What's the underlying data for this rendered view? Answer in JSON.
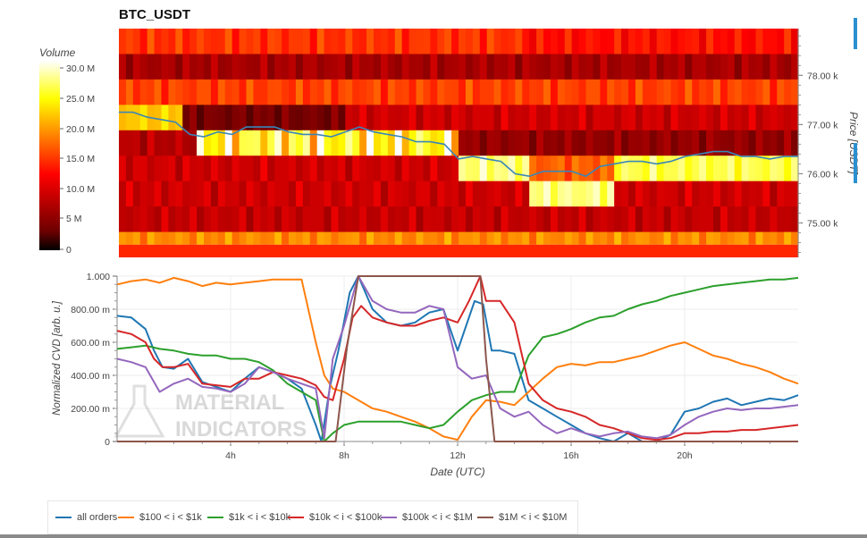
{
  "title": "BTC_USDT",
  "heatmap": {
    "colorbar_title": "Volume",
    "colorbar_ticks": [
      "30.0 M",
      "25.0 M",
      "20.0 M",
      "15.0 M",
      "10.0 M",
      "5 M",
      "0"
    ],
    "price_axis_label": "Price [USDT]",
    "price_ticks": [
      "78.00 k",
      "77.00 k",
      "76.00 k",
      "75.00 k"
    ],
    "price_tick_values": [
      78000,
      77000,
      76000,
      75000
    ],
    "price_range": [
      74300,
      78950
    ]
  },
  "chart_data": {
    "type": "line",
    "x_range_hours": [
      0,
      24
    ],
    "xticks": [
      "4h",
      "8h",
      "12h",
      "16h",
      "20h"
    ],
    "xtick_values": [
      4,
      8,
      12,
      16,
      20
    ],
    "xlabel": "Date (UTC)",
    "ylabel": "Normalized CVD [arb. u.]",
    "ylim": [
      0,
      1
    ],
    "yticks": [
      "0",
      "200.00 m",
      "400.00 m",
      "600.00 m",
      "800.00 m",
      "1.000"
    ],
    "ytick_values": [
      0,
      0.2,
      0.4,
      0.6,
      0.8,
      1.0
    ],
    "grid": true,
    "legend_position": "bottom",
    "price_series": {
      "x": [
        0,
        0.5,
        1,
        1.5,
        2,
        2.5,
        3,
        3.5,
        4,
        4.5,
        5,
        5.5,
        6,
        6.5,
        7,
        7.5,
        8,
        8.5,
        9,
        9.5,
        10,
        10.5,
        11,
        11.5,
        12,
        12.5,
        13,
        13.5,
        14,
        14.5,
        15,
        15.5,
        16,
        16.5,
        17,
        17.5,
        18,
        18.5,
        19,
        19.5,
        20,
        20.5,
        21,
        21.5,
        22,
        22.5,
        23,
        23.5,
        24
      ],
      "y": [
        77250,
        77250,
        77150,
        77100,
        77050,
        76800,
        76750,
        76850,
        76800,
        76950,
        76950,
        76950,
        76850,
        76800,
        76800,
        76750,
        76850,
        76950,
        76850,
        76800,
        76750,
        76650,
        76650,
        76600,
        76300,
        76350,
        76300,
        76250,
        76000,
        75950,
        76050,
        76050,
        76050,
        75950,
        76150,
        76200,
        76250,
        76250,
        76200,
        76250,
        76350,
        76400,
        76450,
        76450,
        76350,
        76350,
        76300,
        76350,
        76350
      ]
    },
    "series": [
      {
        "name": "all orders",
        "color": "#1f77b4",
        "x": [
          0,
          0.5,
          1,
          1.3,
          1.6,
          2,
          2.5,
          3,
          3.5,
          4,
          4.5,
          5,
          5.5,
          6,
          6.5,
          7,
          7.2,
          7.5,
          7.8,
          8.2,
          8.5,
          9,
          9.5,
          10,
          10.5,
          11,
          11.5,
          12,
          12.3,
          12.6,
          12.9,
          13.2,
          13.5,
          14,
          14.5,
          15,
          15.5,
          16,
          16.5,
          17,
          17.5,
          18,
          18.5,
          19,
          19.5,
          20,
          20.5,
          21,
          21.5,
          22,
          22.5,
          23,
          23.5,
          24
        ],
        "values": [
          0.76,
          0.75,
          0.68,
          0.55,
          0.45,
          0.44,
          0.5,
          0.36,
          0.33,
          0.3,
          0.38,
          0.45,
          0.42,
          0.38,
          0.32,
          0.1,
          0.0,
          0.33,
          0.55,
          0.9,
          1.0,
          0.8,
          0.72,
          0.7,
          0.72,
          0.78,
          0.8,
          0.55,
          0.7,
          0.85,
          0.83,
          0.55,
          0.55,
          0.53,
          0.25,
          0.2,
          0.15,
          0.1,
          0.05,
          0.02,
          0.0,
          0.05,
          0.0,
          0.0,
          0.04,
          0.18,
          0.2,
          0.24,
          0.26,
          0.22,
          0.24,
          0.26,
          0.25,
          0.28
        ]
      },
      {
        "name": "$100 < i < $1k",
        "color": "#ff7f0e",
        "x": [
          0,
          0.5,
          1,
          1.5,
          2,
          2.5,
          3,
          3.5,
          4,
          4.5,
          5,
          5.5,
          6,
          6.5,
          7,
          7.3,
          7.6,
          8,
          8.5,
          9,
          9.5,
          10,
          10.5,
          11,
          11.5,
          12,
          12.5,
          13,
          13.5,
          14,
          14.5,
          15,
          15.5,
          16,
          16.5,
          17,
          17.5,
          18,
          18.5,
          19,
          19.5,
          20,
          20.5,
          21,
          21.5,
          22,
          22.5,
          23,
          23.5,
          24
        ],
        "values": [
          0.95,
          0.97,
          0.98,
          0.96,
          0.99,
          0.97,
          0.94,
          0.96,
          0.95,
          0.96,
          0.97,
          0.98,
          0.98,
          0.98,
          0.6,
          0.4,
          0.32,
          0.3,
          0.25,
          0.2,
          0.18,
          0.15,
          0.12,
          0.08,
          0.03,
          0.01,
          0.15,
          0.25,
          0.24,
          0.22,
          0.3,
          0.38,
          0.45,
          0.47,
          0.46,
          0.48,
          0.48,
          0.5,
          0.52,
          0.55,
          0.58,
          0.6,
          0.56,
          0.52,
          0.5,
          0.47,
          0.45,
          0.42,
          0.38,
          0.35
        ]
      },
      {
        "name": "$1k < i < $10k",
        "color": "#2ca02c",
        "x": [
          0,
          0.5,
          1,
          1.5,
          2,
          2.5,
          3,
          3.5,
          4,
          4.5,
          5,
          5.5,
          6,
          6.5,
          7,
          7.3,
          7.6,
          8,
          8.5,
          9,
          9.5,
          10,
          10.5,
          11,
          11.5,
          12,
          12.5,
          13,
          13.5,
          14,
          14.5,
          15,
          15.5,
          16,
          16.5,
          17,
          17.5,
          18,
          18.5,
          19,
          19.5,
          20,
          20.5,
          21,
          21.5,
          22,
          22.5,
          23,
          23.5,
          24
        ],
        "values": [
          0.56,
          0.57,
          0.58,
          0.56,
          0.55,
          0.53,
          0.52,
          0.52,
          0.5,
          0.5,
          0.48,
          0.43,
          0.35,
          0.3,
          0.25,
          0.0,
          0.05,
          0.1,
          0.12,
          0.12,
          0.12,
          0.12,
          0.1,
          0.08,
          0.1,
          0.18,
          0.25,
          0.28,
          0.3,
          0.3,
          0.52,
          0.63,
          0.65,
          0.68,
          0.72,
          0.75,
          0.76,
          0.8,
          0.83,
          0.85,
          0.88,
          0.9,
          0.92,
          0.94,
          0.95,
          0.96,
          0.97,
          0.98,
          0.98,
          0.99
        ]
      },
      {
        "name": "$10k < i < $100k",
        "color": "#d62728",
        "x": [
          0,
          0.5,
          1,
          1.3,
          1.6,
          2,
          2.5,
          3,
          3.5,
          4,
          4.5,
          5,
          5.5,
          6,
          6.5,
          7,
          7.3,
          7.6,
          8,
          8.3,
          8.6,
          9,
          9.5,
          10,
          10.5,
          11,
          11.5,
          12,
          12.4,
          12.8,
          13,
          13.5,
          14,
          14.5,
          15,
          15.5,
          16,
          16.5,
          17,
          17.5,
          18,
          18.5,
          19,
          19.5,
          20,
          20.5,
          21,
          21.5,
          22,
          22.5,
          23,
          23.5,
          24
        ],
        "values": [
          0.67,
          0.65,
          0.6,
          0.5,
          0.45,
          0.45,
          0.47,
          0.35,
          0.34,
          0.33,
          0.38,
          0.38,
          0.42,
          0.4,
          0.38,
          0.34,
          0.27,
          0.25,
          0.5,
          0.75,
          0.82,
          0.75,
          0.72,
          0.7,
          0.7,
          0.73,
          0.75,
          0.72,
          0.85,
          1.0,
          0.85,
          0.85,
          0.72,
          0.35,
          0.25,
          0.2,
          0.18,
          0.15,
          0.1,
          0.08,
          0.05,
          0.02,
          0.01,
          0.02,
          0.05,
          0.05,
          0.06,
          0.06,
          0.07,
          0.07,
          0.08,
          0.09,
          0.1
        ]
      },
      {
        "name": "$100k < i < $1M",
        "color": "#9467bd",
        "x": [
          0,
          0.5,
          1,
          1.5,
          2,
          2.5,
          3,
          3.5,
          4,
          4.5,
          5,
          5.5,
          6,
          6.5,
          7,
          7.3,
          7.6,
          8,
          8.5,
          9,
          9.5,
          10,
          10.5,
          11,
          11.5,
          12,
          12.5,
          13,
          13.5,
          14,
          14.5,
          15,
          15.5,
          16,
          16.5,
          17,
          17.5,
          18,
          18.5,
          19,
          19.5,
          20,
          20.5,
          21,
          21.5,
          22,
          22.5,
          23,
          23.5,
          24
        ],
        "values": [
          0.5,
          0.48,
          0.45,
          0.3,
          0.35,
          0.38,
          0.33,
          0.32,
          0.3,
          0.35,
          0.45,
          0.42,
          0.38,
          0.35,
          0.32,
          0.02,
          0.5,
          0.7,
          1.0,
          0.85,
          0.8,
          0.78,
          0.78,
          0.82,
          0.8,
          0.45,
          0.38,
          0.4,
          0.2,
          0.15,
          0.18,
          0.1,
          0.05,
          0.08,
          0.05,
          0.03,
          0.05,
          0.06,
          0.03,
          0.02,
          0.04,
          0.1,
          0.15,
          0.18,
          0.2,
          0.19,
          0.2,
          0.2,
          0.21,
          0.22
        ]
      },
      {
        "name": "$1M < i < $10M",
        "color": "#8c564b",
        "x": [
          0,
          7.5,
          7.7,
          8.1,
          8.5,
          9,
          10,
          11,
          12,
          12.5,
          12.8,
          13.0,
          13.3,
          14,
          16,
          18,
          20,
          22,
          24
        ],
        "values": [
          0,
          0,
          0,
          0.57,
          1.0,
          1.0,
          1.0,
          1.0,
          1.0,
          1.0,
          1.0,
          0.5,
          0.0,
          0,
          0,
          0,
          0,
          0,
          0
        ]
      }
    ]
  },
  "watermark": {
    "line1": "MATERIAL",
    "line2": "INDICATORS"
  }
}
